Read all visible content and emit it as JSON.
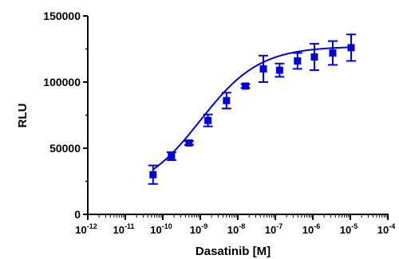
{
  "chart_data": {
    "type": "scatter",
    "title": "",
    "xlabel": "Dasatinib [M]",
    "ylabel": "RLU",
    "xscale": "log",
    "xlim": [
      1e-12,
      0.0001
    ],
    "ylim": [
      0,
      150000
    ],
    "grid": false,
    "legend": "none",
    "x_ticks": [
      {
        "value": 1e-12,
        "base": "10",
        "exp": "-12"
      },
      {
        "value": 1e-11,
        "base": "10",
        "exp": "-11"
      },
      {
        "value": 1e-10,
        "base": "10",
        "exp": "-10"
      },
      {
        "value": 1e-09,
        "base": "10",
        "exp": "-9"
      },
      {
        "value": 1e-08,
        "base": "10",
        "exp": "-8"
      },
      {
        "value": 1e-07,
        "base": "10",
        "exp": "-7"
      },
      {
        "value": 1e-06,
        "base": "10",
        "exp": "-6"
      },
      {
        "value": 1e-05,
        "base": "10",
        "exp": "-5"
      },
      {
        "value": 0.0001,
        "base": "10",
        "exp": "-4"
      }
    ],
    "y_ticks": [
      {
        "value": 0,
        "label": "0"
      },
      {
        "value": 50000,
        "label": "50000"
      },
      {
        "value": 100000,
        "label": "100000"
      },
      {
        "value": 150000,
        "label": "150000"
      }
    ],
    "color": "#0000d6",
    "series": [
      {
        "points": [
          {
            "x": 5.5e-11,
            "y": 30000,
            "err": 7000
          },
          {
            "x": 1.7e-10,
            "y": 44000,
            "err": 3000
          },
          {
            "x": 5e-10,
            "y": 54000,
            "err": 1500
          },
          {
            "x": 1.6e-09,
            "y": 71000,
            "err": 4500
          },
          {
            "x": 5e-09,
            "y": 86000,
            "err": 6000
          },
          {
            "x": 1.6e-08,
            "y": 97000,
            "err": 1500
          },
          {
            "x": 4.8e-08,
            "y": 110000,
            "err": 10000
          },
          {
            "x": 1.3e-07,
            "y": 109000,
            "err": 5000
          },
          {
            "x": 3.9e-07,
            "y": 116000,
            "err": 6000
          },
          {
            "x": 1.1e-06,
            "y": 119000,
            "err": 10000
          },
          {
            "x": 3.4e-06,
            "y": 122000,
            "err": 9000
          },
          {
            "x": 1.05e-05,
            "y": 126000,
            "err": 10000
          }
        ]
      }
    ],
    "fit": {
      "bottom": 15000,
      "top": 127000,
      "logEC50": -9.0,
      "hillslope": 0.55,
      "x_range": [
        5.5e-11,
        1.05e-05
      ]
    }
  }
}
